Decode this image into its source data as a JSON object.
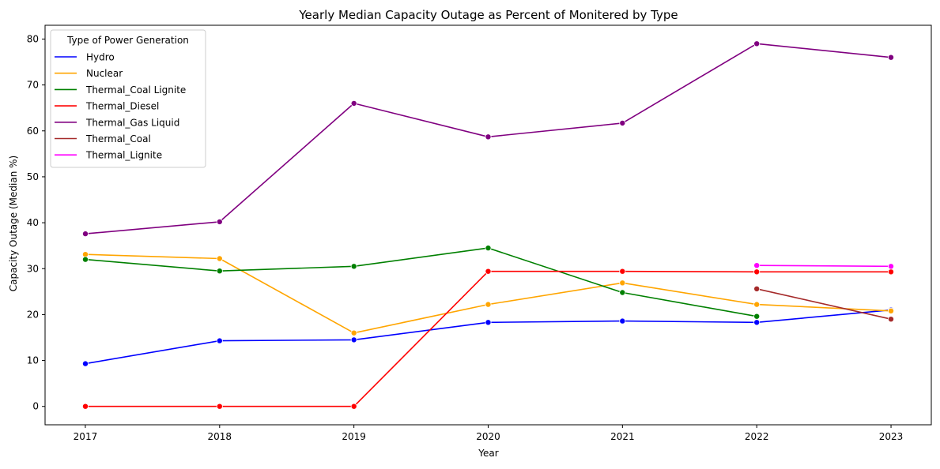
{
  "chart_data": {
    "type": "line",
    "title": "Yearly Median Capacity Outage as Percent of Monitered by Type",
    "xlabel": "Year",
    "ylabel": "Capacity Outage (Median %)",
    "x": [
      2017,
      2018,
      2019,
      2020,
      2021,
      2022,
      2023
    ],
    "x_tick_labels": [
      "2017",
      "2018",
      "2019",
      "2020",
      "2021",
      "2022",
      "2023"
    ],
    "y_ticks": [
      0,
      10,
      20,
      30,
      40,
      50,
      60,
      70,
      80
    ],
    "y_tick_labels": [
      "0",
      "10",
      "20",
      "30",
      "40",
      "50",
      "60",
      "70",
      "80"
    ],
    "xlim": [
      2016.7,
      2023.3
    ],
    "ylim": [
      -4.0,
      83.0
    ],
    "grid": false,
    "legend": {
      "title": "Type of Power Generation",
      "placement": "top-left"
    },
    "series": [
      {
        "name": "Hydro",
        "color": "#0000ff",
        "x": [
          2017,
          2018,
          2019,
          2020,
          2021,
          2022,
          2023
        ],
        "values": [
          9.3,
          14.3,
          14.5,
          18.3,
          18.6,
          18.3,
          21.0
        ]
      },
      {
        "name": "Nuclear",
        "color": "#ffa500",
        "x": [
          2017,
          2018,
          2019,
          2020,
          2021,
          2022,
          2023
        ],
        "values": [
          33.1,
          32.2,
          16.0,
          22.2,
          26.9,
          22.2,
          20.8
        ]
      },
      {
        "name": "Thermal_Coal Lignite",
        "color": "#008000",
        "x": [
          2017,
          2018,
          2019,
          2020,
          2021,
          2022
        ],
        "values": [
          32.0,
          29.5,
          30.5,
          34.5,
          24.8,
          19.6
        ]
      },
      {
        "name": "Thermal_Diesel",
        "color": "#ff0000",
        "x": [
          2017,
          2018,
          2019,
          2020,
          2021,
          2022,
          2023
        ],
        "values": [
          0.0,
          0.0,
          0.0,
          29.4,
          29.4,
          29.3,
          29.3
        ]
      },
      {
        "name": "Thermal_Gas Liquid",
        "color": "#800080",
        "x": [
          2017,
          2018,
          2019,
          2020,
          2021,
          2022,
          2023
        ],
        "values": [
          37.6,
          40.2,
          66.0,
          58.7,
          61.7,
          79.0,
          76.0
        ]
      },
      {
        "name": "Thermal_Coal",
        "color": "#a52a2a",
        "x": [
          2022,
          2023
        ],
        "values": [
          25.6,
          19.0
        ]
      },
      {
        "name": "Thermal_Lignite",
        "color": "#ff00ff",
        "x": [
          2022,
          2023
        ],
        "values": [
          30.7,
          30.5
        ]
      }
    ]
  }
}
